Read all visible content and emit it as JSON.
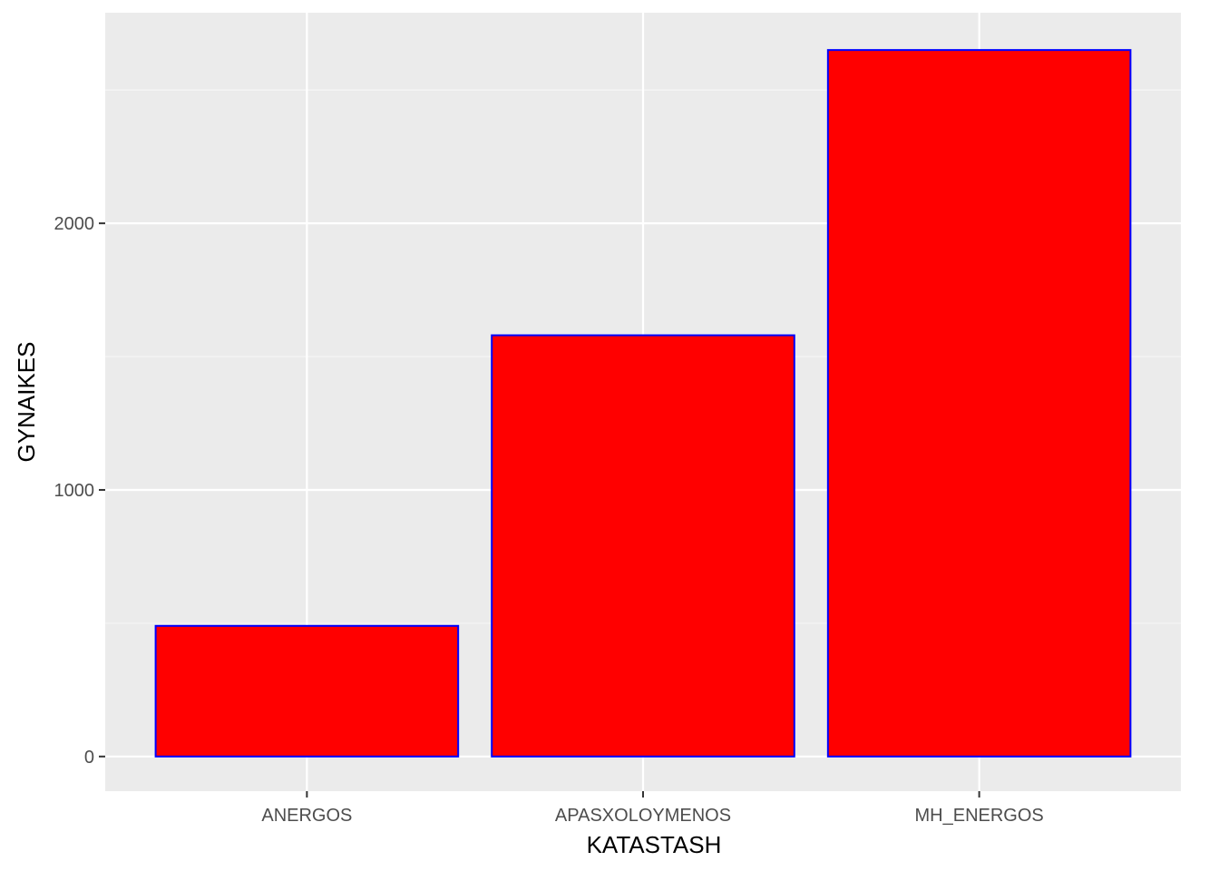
{
  "chart_data": {
    "type": "bar",
    "title": "",
    "xlabel": "KATASTASH",
    "ylabel": "GYNAIKES",
    "categories": [
      "ANERGOS",
      "APASXOLOYMENOS",
      "MH_ENERGOS"
    ],
    "values": [
      490,
      1580,
      2650
    ],
    "ylim": [
      -130,
      2790
    ],
    "yticks": [
      0,
      1000,
      2000
    ],
    "ytick_labels": [
      "0",
      "1000",
      "2000"
    ],
    "grid": true,
    "legend": "none",
    "colors": {
      "panel_background": "#ebebeb",
      "grid_major": "#ffffff",
      "grid_minor": "#f7f7f7",
      "bar_fill": "#ff0000",
      "bar_outline": "#0000ff",
      "tick_text": "#4d4d4d",
      "axis_ticks": "#333333"
    }
  }
}
